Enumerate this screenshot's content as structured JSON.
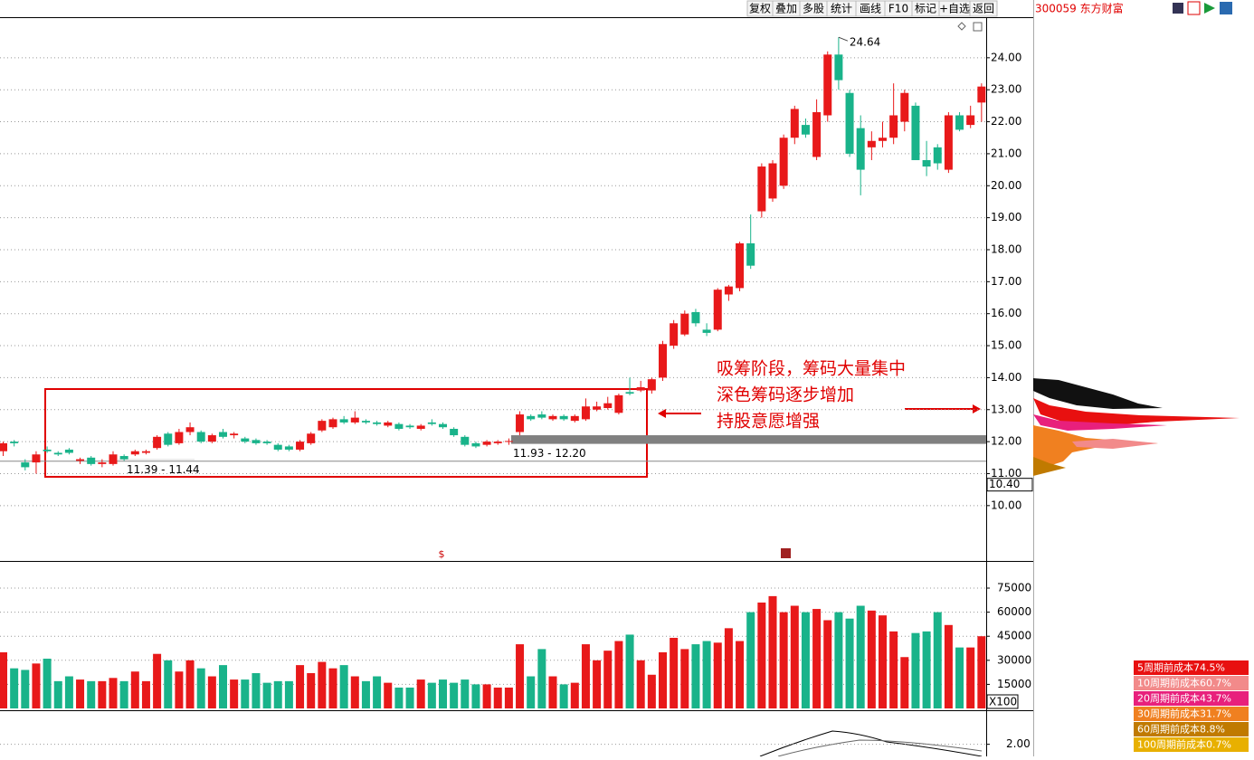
{
  "toolbar": {
    "buttons": [
      "复权",
      "叠加",
      "多股",
      "统计",
      "画线",
      "F10",
      "标记",
      "+自选",
      "返回"
    ],
    "stock": "300059 东方财富"
  },
  "chart_data": [
    {
      "type": "candlestick",
      "up_color": "#e8191a",
      "down_color": "#19b38a",
      "grid": true,
      "ylim": [
        8.27,
        25.24
      ],
      "yticks": [
        {
          "value": 10,
          "label": "10.00"
        },
        {
          "value": 11,
          "label": "11.00"
        },
        {
          "value": 12,
          "label": "12.00"
        },
        {
          "value": 13,
          "label": "13.00"
        },
        {
          "value": 14,
          "label": "14.00"
        },
        {
          "value": 15,
          "label": "15.00"
        },
        {
          "value": 16,
          "label": "16.00"
        },
        {
          "value": 17,
          "label": "17.00"
        },
        {
          "value": 18,
          "label": "18.00"
        },
        {
          "value": 19,
          "label": "19.00"
        },
        {
          "value": 20,
          "label": "20.00"
        },
        {
          "value": 21,
          "label": "21.00"
        },
        {
          "value": 22,
          "label": "22.00"
        },
        {
          "value": 23,
          "label": "23.00"
        },
        {
          "value": 24,
          "label": "24.00"
        }
      ],
      "open": [
        11.7,
        12.0,
        11.35,
        11.35,
        11.75,
        11.65,
        11.75,
        11.4,
        11.5,
        11.3,
        11.3,
        11.55,
        11.6,
        11.65,
        11.8,
        12.25,
        11.95,
        12.3,
        12.3,
        12.0,
        12.3,
        12.2,
        12.1,
        12.05,
        12.0,
        11.9,
        11.85,
        11.75,
        11.95,
        12.35,
        12.45,
        12.7,
        12.6,
        12.65,
        12.6,
        12.5,
        12.55,
        12.5,
        12.4,
        12.6,
        12.55,
        12.4,
        12.15,
        11.95,
        11.9,
        11.95,
        12.0,
        12.3,
        12.8,
        12.85,
        12.7,
        12.8,
        12.65,
        12.7,
        13.0,
        13.05,
        12.9,
        13.55,
        13.6,
        13.6,
        14.0,
        15.0,
        15.35,
        16.05,
        15.5,
        15.5,
        16.6,
        16.8,
        18.2,
        19.2,
        19.6,
        20.0,
        21.5,
        21.9,
        20.9,
        22.2,
        24.1,
        22.9,
        21.8,
        21.2,
        21.4,
        21.5,
        22.0,
        22.5,
        20.8,
        21.2,
        20.5,
        22.2,
        21.9,
        22.6
      ],
      "high": [
        12.0,
        12.05,
        11.45,
        11.7,
        11.85,
        11.7,
        11.8,
        11.5,
        11.55,
        11.45,
        11.7,
        11.6,
        11.75,
        11.75,
        12.2,
        12.3,
        12.4,
        12.6,
        12.35,
        12.25,
        12.4,
        12.3,
        12.15,
        12.1,
        12.05,
        11.95,
        11.9,
        12.05,
        12.3,
        12.7,
        12.75,
        12.8,
        12.95,
        12.7,
        12.65,
        12.65,
        12.6,
        12.55,
        12.55,
        12.7,
        12.6,
        12.45,
        12.2,
        12.0,
        12.05,
        12.05,
        12.1,
        12.95,
        12.85,
        12.95,
        12.85,
        12.85,
        12.85,
        13.35,
        13.25,
        13.4,
        13.5,
        14.0,
        13.9,
        14.0,
        15.15,
        15.8,
        16.1,
        16.15,
        15.7,
        16.8,
        16.9,
        18.25,
        19.1,
        20.7,
        20.8,
        21.6,
        22.5,
        22.1,
        22.7,
        24.2,
        24.64,
        23.0,
        22.2,
        21.7,
        22.0,
        23.2,
        23.0,
        22.6,
        21.4,
        21.3,
        22.3,
        22.3,
        22.5,
        23.2
      ],
      "low": [
        11.55,
        11.85,
        11.1,
        11.0,
        11.65,
        11.55,
        11.6,
        11.3,
        11.25,
        11.2,
        11.25,
        11.4,
        11.55,
        11.6,
        11.75,
        11.85,
        11.9,
        12.2,
        11.95,
        11.95,
        12.1,
        12.1,
        11.95,
        11.9,
        11.9,
        11.7,
        11.7,
        11.7,
        11.9,
        12.3,
        12.4,
        12.55,
        12.55,
        12.55,
        12.5,
        12.45,
        12.35,
        12.4,
        12.35,
        12.5,
        12.4,
        12.15,
        11.85,
        11.8,
        11.85,
        11.9,
        11.9,
        12.2,
        12.65,
        12.7,
        12.65,
        12.65,
        12.6,
        12.65,
        12.95,
        13.0,
        12.85,
        13.45,
        13.55,
        13.5,
        13.9,
        14.9,
        15.3,
        15.6,
        15.3,
        15.45,
        16.4,
        16.7,
        17.4,
        19.0,
        19.5,
        19.9,
        21.3,
        21.5,
        20.8,
        22.0,
        23.0,
        20.9,
        19.7,
        20.8,
        21.2,
        21.3,
        21.7,
        20.8,
        20.3,
        20.5,
        20.4,
        21.7,
        21.8,
        22.0
      ],
      "close": [
        11.95,
        11.95,
        11.2,
        11.6,
        11.7,
        11.6,
        11.65,
        11.45,
        11.3,
        11.35,
        11.6,
        11.45,
        11.7,
        11.7,
        12.15,
        11.9,
        12.3,
        12.45,
        12.0,
        12.2,
        12.15,
        12.25,
        12.0,
        11.95,
        11.95,
        11.75,
        11.75,
        12.0,
        12.25,
        12.65,
        12.7,
        12.6,
        12.75,
        12.6,
        12.55,
        12.6,
        12.4,
        12.45,
        12.5,
        12.55,
        12.45,
        12.2,
        11.9,
        11.85,
        12.0,
        12.0,
        12.02,
        12.85,
        12.7,
        12.75,
        12.8,
        12.7,
        12.8,
        13.1,
        13.1,
        13.2,
        13.45,
        13.5,
        13.7,
        13.95,
        15.05,
        15.7,
        16.0,
        15.7,
        15.4,
        16.75,
        16.85,
        18.2,
        17.5,
        20.6,
        20.7,
        21.5,
        22.4,
        21.6,
        22.3,
        24.1,
        23.3,
        21.0,
        20.5,
        21.4,
        21.5,
        22.2,
        22.9,
        20.8,
        20.6,
        20.7,
        22.2,
        21.75,
        22.2,
        23.1
      ],
      "max_label": "24.64",
      "zones": [
        {
          "label": "11.39 - 11.44",
          "low": 11.39,
          "high": 11.44
        },
        {
          "label": "11.93 - 12.20",
          "low": 11.93,
          "high": 12.2
        }
      ],
      "axis_marker": {
        "value": 10.4,
        "label": "10.40"
      },
      "annotations": [
        "吸筹阶段，筹码大量集中",
        "深色筹码逐步增加",
        "持股意愿增强"
      ]
    },
    {
      "type": "volume",
      "unit": "X100",
      "grid": true,
      "ylim": [
        0,
        90800
      ],
      "yticks": [
        15000,
        30000,
        45000,
        60000,
        75000
      ],
      "values": [
        35000,
        25000,
        24000,
        28000,
        31000,
        17000,
        20000,
        18000,
        17000,
        17000,
        19000,
        17000,
        23000,
        17000,
        34000,
        30000,
        23000,
        30000,
        25000,
        20000,
        27000,
        18000,
        18000,
        22000,
        16000,
        17000,
        17000,
        27000,
        22000,
        29000,
        25000,
        27000,
        20000,
        17000,
        20000,
        16000,
        13000,
        13000,
        18000,
        16000,
        18000,
        16000,
        18000,
        15000,
        15000,
        13000,
        13000,
        40000,
        20000,
        37000,
        20000,
        15000,
        16000,
        40000,
        30000,
        36000,
        42000,
        46000,
        30000,
        21000,
        35000,
        44000,
        37000,
        40000,
        42000,
        41000,
        50000,
        42000,
        60000,
        66000,
        70000,
        60000,
        64000,
        60000,
        62000,
        55000,
        60000,
        56000,
        64000,
        61000,
        58000,
        48000,
        32000,
        47000,
        48000,
        60000,
        52000,
        38000,
        38000,
        45000
      ]
    },
    {
      "type": "indicator",
      "grid": true,
      "ylim": [
        1.7,
        2.8
      ],
      "yticks": [
        {
          "value": 2,
          "label": "2.00"
        }
      ]
    }
  ],
  "cost_legend": [
    {
      "label": "5周期前成本74.5%",
      "color": "#e81010"
    },
    {
      "label": "10周期前成本60.7%",
      "color": "#f28a8a"
    },
    {
      "label": "20周期前成本43.7%",
      "color": "#e8207c"
    },
    {
      "label": "30周期前成本31.7%",
      "color": "#f08020"
    },
    {
      "label": "60周期前成本8.8%",
      "color": "#c07a00"
    },
    {
      "label": "100周期前成本0.7%",
      "color": "#e8b000"
    }
  ]
}
